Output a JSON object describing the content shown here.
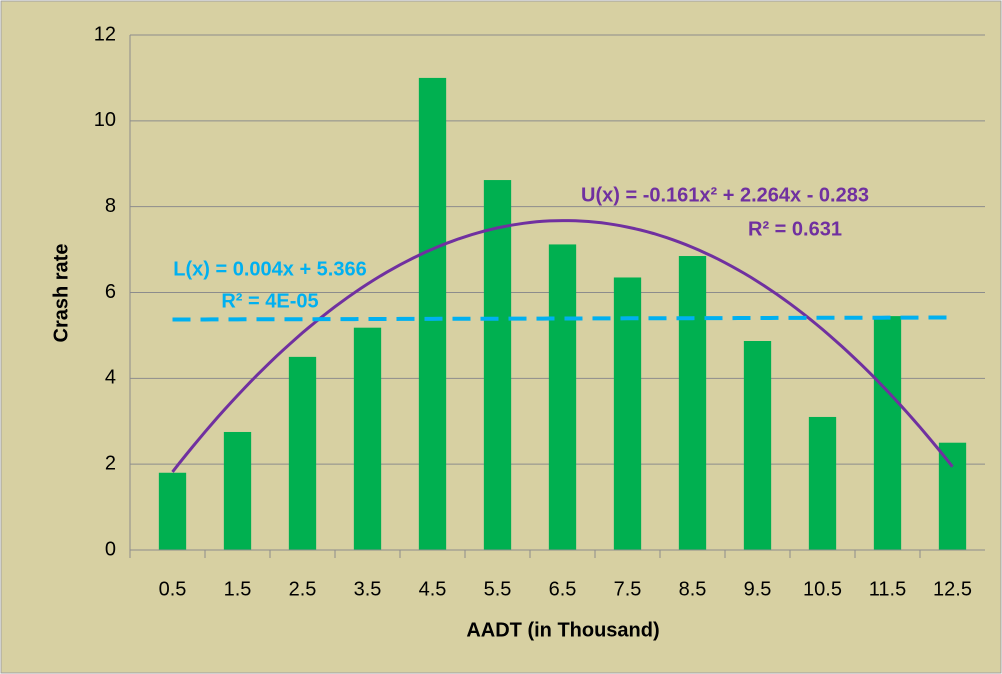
{
  "chart_data": {
    "type": "bar",
    "x_label": "AADT (in Thousand)",
    "y_label": "Crash rate",
    "categories": [
      "0.5",
      "1.5",
      "2.5",
      "3.5",
      "4.5",
      "5.5",
      "6.5",
      "7.5",
      "8.5",
      "9.5",
      "10.5",
      "11.5",
      "12.5"
    ],
    "values": [
      1.8,
      2.75,
      4.5,
      5.18,
      11.0,
      8.62,
      7.12,
      6.35,
      6.85,
      4.87,
      3.1,
      5.45,
      2.5
    ],
    "color": "#00b050",
    "ylim": [
      0,
      12
    ],
    "yticks": [
      0,
      2,
      4,
      6,
      8,
      10,
      12
    ],
    "grid": true,
    "trendlines": [
      {
        "label": "U(x) = -0.161x² + 2.264x - 0.283",
        "r2_label": "R² = 0.631",
        "coefficients": [
          -0.161,
          2.264,
          -0.283
        ],
        "color": "#7030a0",
        "dashed": false
      },
      {
        "label": "L(x) = 0.004x + 5.366",
        "r2_label": "R² = 4E-05",
        "coefficients": [
          0.004,
          5.366
        ],
        "color": "#00b0f0",
        "dashed": true
      }
    ]
  }
}
